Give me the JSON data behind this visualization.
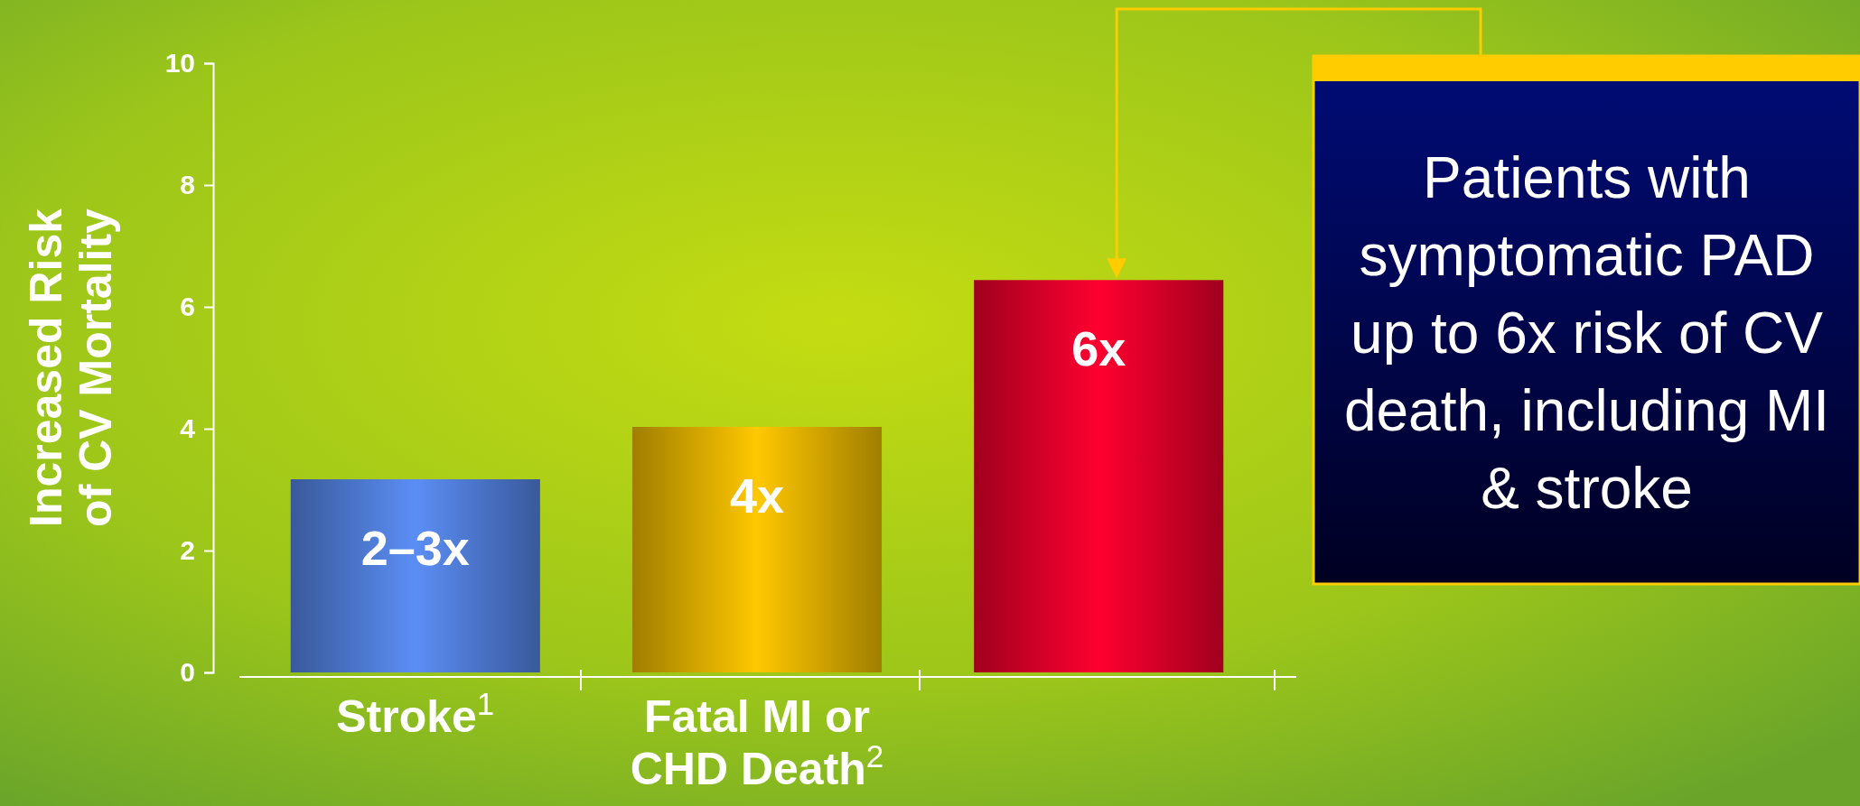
{
  "chart_data": {
    "type": "bar",
    "ylabel": "Increased Risk\nof CV Mortality",
    "categories": [
      "Stroke$^{1}$",
      "Fatal MI or\nCHD Death$^{2}$",
      null
    ],
    "values": [
      3.17,
      4.03,
      6.44
    ],
    "colors": [
      "#5b8ef5",
      "#ffc800",
      "#ff0030"
    ],
    "value_labels": [
      "2–3x",
      "4x",
      "6x"
    ],
    "ylim": [
      0,
      10
    ],
    "yticks": [
      0,
      2,
      4,
      6,
      8,
      10
    ],
    "grid": false,
    "annotations": [
      "Patients with symptomatic PAD up to 6x risk of CV death, including MI & stroke"
    ]
  }
}
